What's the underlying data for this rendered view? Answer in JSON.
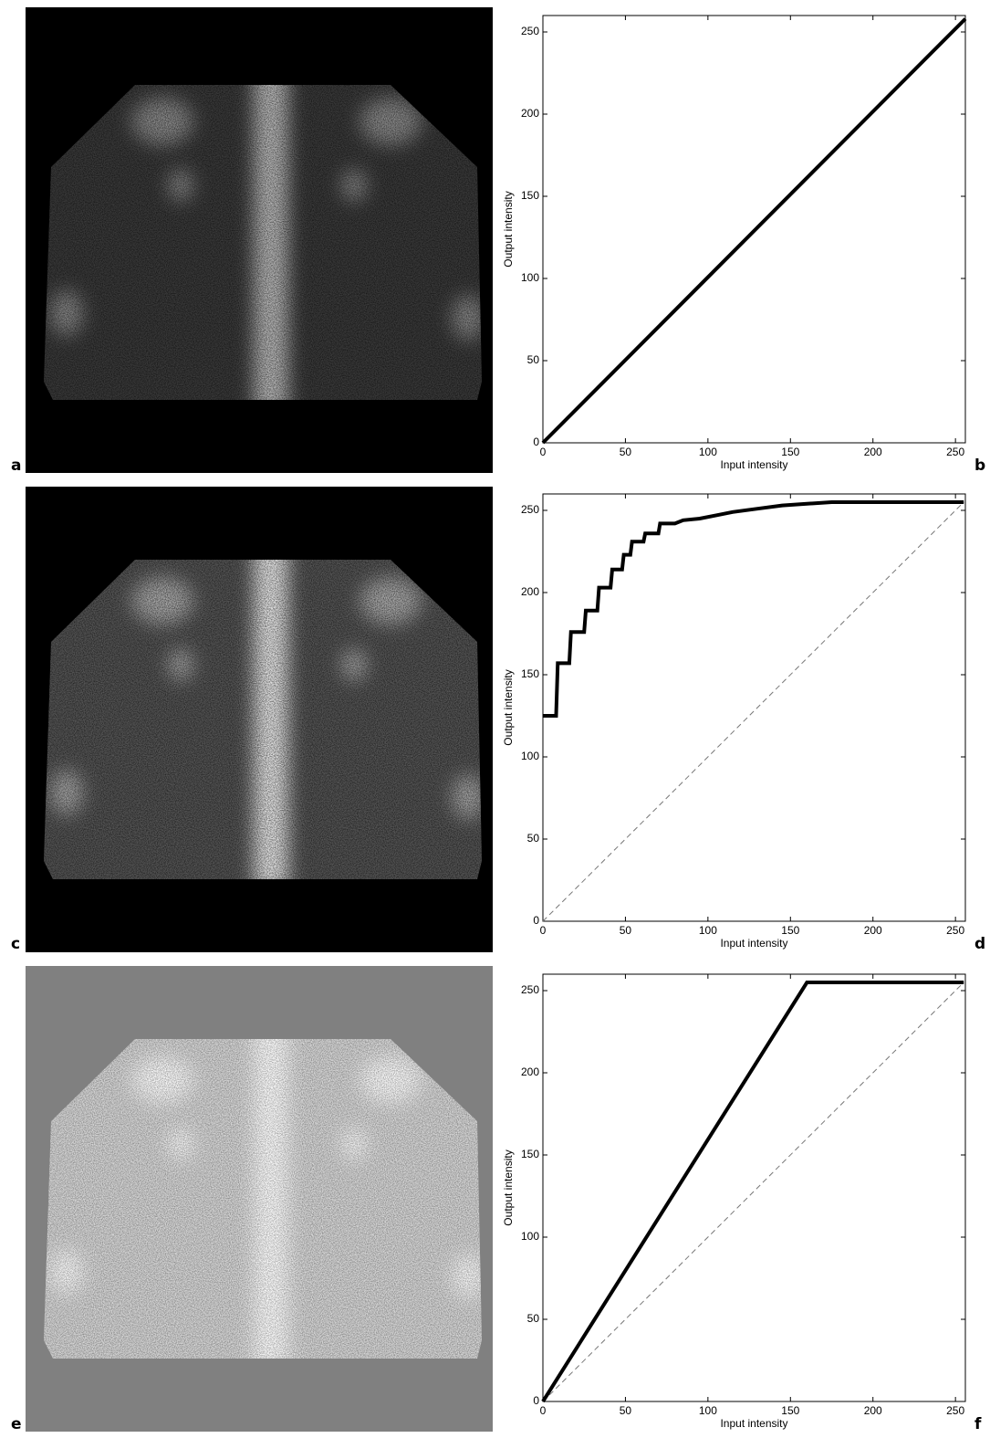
{
  "panel_labels": [
    "a",
    "b",
    "c",
    "d",
    "e",
    "f"
  ],
  "chart_data": [
    {
      "type": "line",
      "xlabel": "Input intensity",
      "ylabel": "Output intensity",
      "xlim": [
        0,
        256
      ],
      "ylim": [
        0,
        260
      ],
      "xticks": [
        0,
        50,
        100,
        150,
        200,
        250
      ],
      "yticks": [
        0,
        50,
        100,
        150,
        200,
        250
      ],
      "series": [
        {
          "color": "#000000",
          "style": "solid",
          "x": [
            0,
            256
          ],
          "values": [
            0,
            258
          ]
        }
      ]
    },
    {
      "type": "line",
      "xlabel": "Input intensity",
      "ylabel": "Output intensity",
      "xlim": [
        0,
        256
      ],
      "ylim": [
        0,
        260
      ],
      "xticks": [
        0,
        50,
        100,
        150,
        200,
        250
      ],
      "yticks": [
        0,
        50,
        100,
        150,
        200,
        250
      ],
      "series": [
        {
          "color": "#777777",
          "style": "dashed",
          "x": [
            0,
            255
          ],
          "values": [
            0,
            255
          ]
        },
        {
          "color": "#000000",
          "style": "solid",
          "x": [
            0,
            8,
            9,
            16,
            17,
            25,
            26,
            33,
            34,
            41,
            42,
            48,
            49,
            53,
            54,
            61,
            62,
            70,
            71,
            80,
            85,
            95,
            105,
            115,
            130,
            145,
            160,
            175,
            255
          ],
          "values": [
            125,
            125,
            157,
            157,
            176,
            176,
            189,
            189,
            203,
            203,
            214,
            214,
            223,
            223,
            231,
            231,
            236,
            236,
            242,
            242,
            244,
            245,
            247,
            249,
            251,
            253,
            254,
            255,
            255
          ]
        }
      ]
    },
    {
      "type": "line",
      "xlabel": "Input intensity",
      "ylabel": "Output intensity",
      "xlim": [
        0,
        256
      ],
      "ylim": [
        0,
        260
      ],
      "xticks": [
        0,
        50,
        100,
        150,
        200,
        250
      ],
      "yticks": [
        0,
        50,
        100,
        150,
        200,
        250
      ],
      "series": [
        {
          "color": "#777777",
          "style": "dashed",
          "x": [
            0,
            255
          ],
          "values": [
            0,
            255
          ]
        },
        {
          "color": "#000000",
          "style": "solid",
          "x": [
            0,
            160,
            255
          ],
          "values": [
            0,
            255,
            255
          ]
        }
      ]
    }
  ]
}
